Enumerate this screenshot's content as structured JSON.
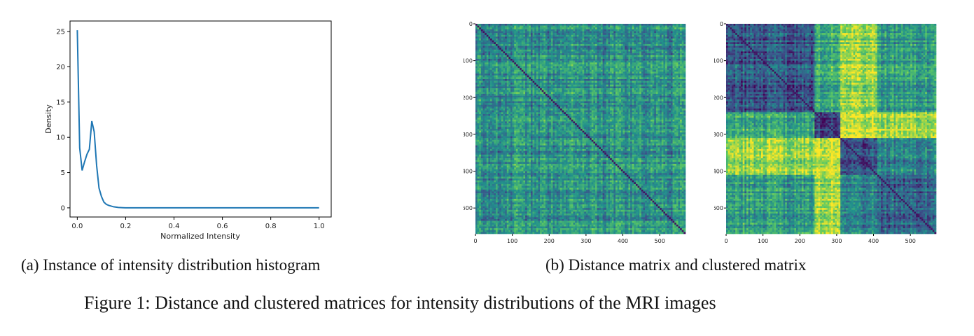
{
  "captions": {
    "a": "(a) Instance of intensity distribution histogram",
    "b": "(b) Distance matrix and clustered matrix",
    "figure": "Figure 1: Distance and clustered matrices for intensity distributions of the MRI images"
  },
  "chart_data": [
    {
      "type": "line",
      "xlabel": "Normalized Intensity",
      "ylabel": "Density",
      "xlim": [
        -0.03,
        1.05
      ],
      "ylim": [
        -1.3,
        26.5
      ],
      "xticks": [
        "0.0",
        "0.2",
        "0.4",
        "0.6",
        "0.8",
        "1.0"
      ],
      "yticks": [
        "0",
        "5",
        "10",
        "15",
        "20",
        "25"
      ],
      "grid": false,
      "color": "#1f77b4",
      "x": [
        0.0,
        0.01,
        0.02,
        0.03,
        0.04,
        0.05,
        0.06,
        0.07,
        0.08,
        0.09,
        0.1,
        0.11,
        0.12,
        0.13,
        0.15,
        0.17,
        0.19,
        0.2,
        0.3,
        0.4,
        0.5,
        0.6,
        0.7,
        0.8,
        0.9,
        1.0
      ],
      "y": [
        25.2,
        8.5,
        5.3,
        6.5,
        7.6,
        8.3,
        12.3,
        10.8,
        6.0,
        2.8,
        1.6,
        0.8,
        0.5,
        0.35,
        0.15,
        0.05,
        0.02,
        0.0,
        0.0,
        0.0,
        0.0,
        0.0,
        0.0,
        0.0,
        0.0,
        0.0
      ]
    },
    {
      "type": "heatmap",
      "name": "distance-matrix",
      "size": 570,
      "colormap": "viridis",
      "xticks": [
        "0",
        "100",
        "200",
        "300",
        "400",
        "500"
      ],
      "yticks": [
        "0",
        "100",
        "200",
        "300",
        "400",
        "500"
      ],
      "base_level": 0.5
    },
    {
      "type": "heatmap",
      "name": "clustered-matrix",
      "size": 570,
      "colormap": "viridis",
      "xticks": [
        "0",
        "100",
        "200",
        "300",
        "400",
        "500"
      ],
      "yticks": [
        "0",
        "100",
        "200",
        "300",
        "400",
        "500"
      ],
      "cluster_bounds": [
        0,
        240,
        310,
        410,
        570
      ],
      "block_levels": [
        [
          0.28,
          0.6,
          0.85,
          0.55
        ],
        [
          0.6,
          0.18,
          0.92,
          0.85
        ],
        [
          0.85,
          0.92,
          0.25,
          0.45
        ],
        [
          0.55,
          0.85,
          0.45,
          0.32
        ]
      ]
    }
  ]
}
